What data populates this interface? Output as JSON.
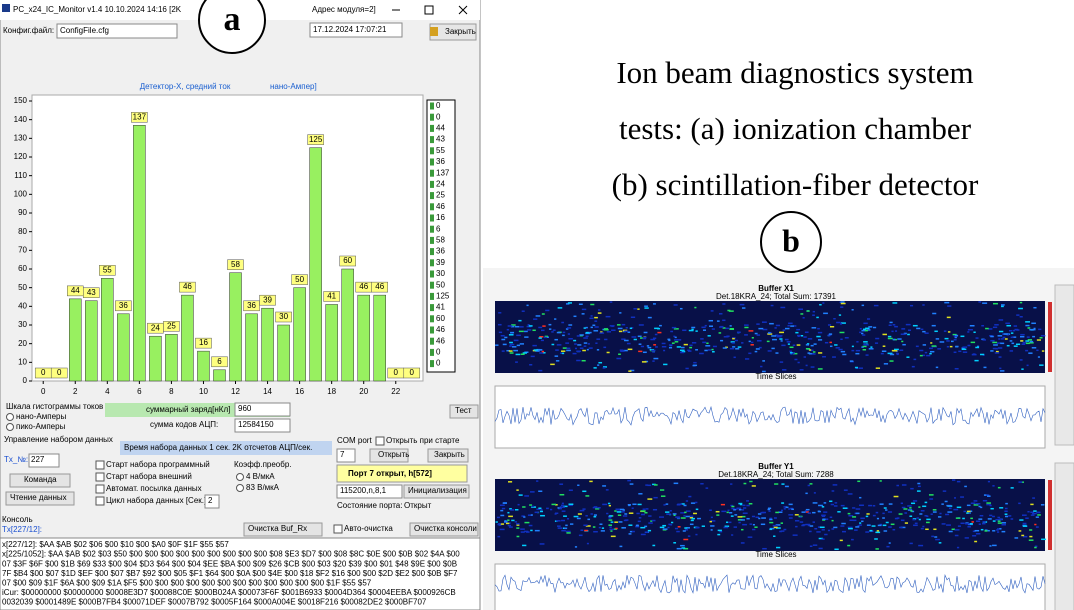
{
  "window": {
    "title": "PC_x24_IC_Monitor  v1.4  10.10.2024 14:16  [2K",
    "title_right": "Адрес модуля=2]",
    "config_label": "Конфиг.файл:",
    "config_value": "ConfigFile.cfg",
    "datetime": "17.12.2024  17:07:21",
    "close_button": "Закрыть",
    "controls": {
      "scale_group": "Шкала гистограммы токов",
      "nano": "нано-Амперы",
      "pico": "пико-Амперы",
      "charge_label": "суммарный заряд[нКл]",
      "charge_value": "960",
      "adc_label": "сумма кодов АЦП:",
      "adc_value": "12584150",
      "test": "Тест",
      "control_group": "Управление набором данных",
      "timing": "Время набора данных 1 сек.  2K отсчетов АЦП/сек.",
      "tx_label": "Tx_№:",
      "tx_value": "227",
      "command": "Команда",
      "read": "Чтение данных",
      "start_prog": "Старт набора  программный",
      "start_ext": "Старт набора внешний",
      "auto_send": "Автомат. посылка данных",
      "cycle": "Цикл набора данных [Сек.]",
      "cycle_value": "2",
      "coef": "Коэфф.преобр.",
      "coef_4": "4 В/мкА",
      "coef_83": "83 В/мкА",
      "com_port": "COM port",
      "com_value": "7",
      "open_at_start": "Открыть при старте",
      "open": "Открыть",
      "close": "Закрыть",
      "port_status": "Порт 7 открыт, h[572]",
      "baud": "115200,n,8,1",
      "init": "Инициализация",
      "state_label": "Состояние порта:",
      "state_value": "Открыт",
      "console": "Консоль",
      "tx_line": "Tx[227/12]:",
      "clear_rx": "Очистка Buf_Rx",
      "auto_clear": "Авто-очистка",
      "clear_console": "Очистка консоли"
    },
    "console_lines": [
      "x[227/12]: $AA $AB $02 $06 $00 $10 $00 $A0 $0F $1F $55 $57",
      "x[225/1052]: $AA $AB $02 $03 $50 $00 $00 $00 $00 $00 $00 $00 $00 $00 $08 $E3 $D7 $00 $08 $8C $0E $00 $0B $02 $4A $00",
      "07 $3F $6F $00 $1B $69 $33 $00 $04 $D3 $64 $00 $04 $EE $BA $00 $09 $26 $CB $00 $03 $20 $39 $00 $01 $48 $9E $00 $0B",
      "7F $B4 $00 $07 $1D $EF $00 $07 $B7 $92 $00 $05 $F1 $64 $00 $0A $00 $4E $00 $18 $F2 $16 $00 $00 $2D $E2 $00 $0B $F7",
      "07 $00 $09 $1F $6A $00 $09 $1A $F5 $00 $00 $00 $00 $00 $00 $00 $00 $00 $00 $00 $00 $1F $55 $57",
      "iCur: $00000000 $00000000 $0008E3D7 $00088C0E $000B024A $00073F6F $001B6933 $0004D364 $0004EEBA $000926CB",
      "0032039 $0001489E $000B7FB4 $00071DEF $0007B792 $0005F164 $000A004E $0018F216 $00082DE2 $000BF707"
    ]
  },
  "chart_data": {
    "type": "bar",
    "title": "Детектор-X, средний ток",
    "title_tail": "нано-Ампер]",
    "x": [
      0,
      1,
      2,
      3,
      4,
      5,
      6,
      7,
      8,
      9,
      10,
      11,
      12,
      13,
      14,
      15,
      16,
      17,
      18,
      19,
      20,
      21,
      22,
      23
    ],
    "values": [
      0,
      0,
      44,
      43,
      55,
      36,
      137,
      24,
      25,
      46,
      16,
      6,
      58,
      36,
      39,
      30,
      50,
      125,
      41,
      60,
      46,
      46,
      0,
      0
    ],
    "color": "#98f060",
    "xlim": [
      -0.7,
      23.7
    ],
    "ylim": [
      0,
      150
    ],
    "xticks": [
      0,
      2,
      4,
      6,
      8,
      10,
      12,
      14,
      16,
      18,
      20,
      22
    ],
    "yticks": [
      0,
      10,
      20,
      30,
      40,
      50,
      60,
      70,
      80,
      90,
      100,
      110,
      120,
      130,
      140,
      150
    ]
  },
  "caption": [
    "Ion beam diagnostics system",
    "tests: (a) ionization chamber",
    "(b) scintillation-fiber detector"
  ],
  "labels": {
    "a": "a",
    "b": "b"
  },
  "buffers": [
    {
      "title": "Buffer X1",
      "subtitle": "Det.18KRA_24; Total Sum: 17391",
      "axis_label": "Time Slices"
    },
    {
      "title": "Buffer Y1",
      "subtitle": "Det.18KRA_24; Total Sum: 7288",
      "axis_label": "Time Slices"
    }
  ]
}
